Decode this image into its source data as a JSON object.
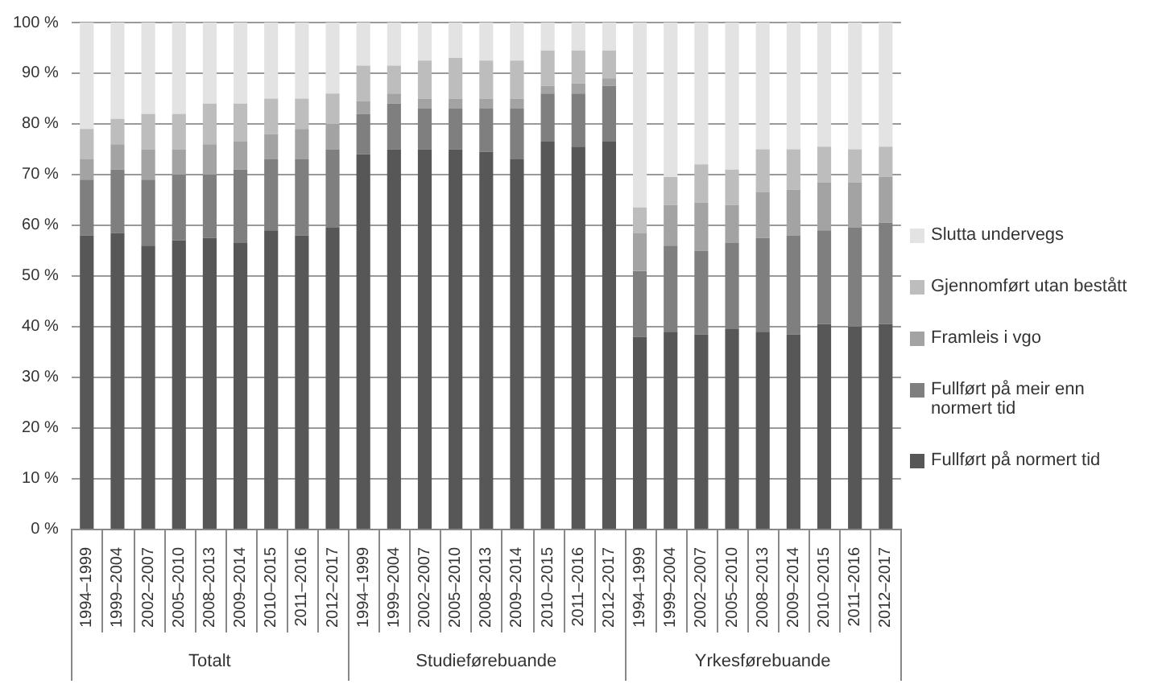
{
  "chart_data": {
    "type": "bar",
    "stacked": true,
    "categories": [
      "1994–1999",
      "1999–2004",
      "2002–2007",
      "2005–2010",
      "2008–2013",
      "2009–2014",
      "2010–2015",
      "2011–2016",
      "2012–2017",
      "1994–1999",
      "1999–2004",
      "2002–2007",
      "2005–2010",
      "2008–2013",
      "2009–2014",
      "2010–2015",
      "2011–2016",
      "2012–2017",
      "1994–1999",
      "1999–2004",
      "2002–2007",
      "2005–2010",
      "2008–2013",
      "2009–2014",
      "2010–2015",
      "2011–2016",
      "2012–2017"
    ],
    "series": [
      {
        "name": "Fullført på normert tid",
        "color": "#575757",
        "values": [
          58,
          58.5,
          56,
          57,
          57.5,
          56.5,
          59,
          58,
          59.5,
          74,
          75,
          75,
          75,
          74.5,
          73,
          76.5,
          75.5,
          76.5,
          38,
          39,
          38.5,
          39.5,
          39,
          38.5,
          40.5,
          40,
          40.5
        ]
      },
      {
        "name": "Fullført på meir enn normert tid",
        "color": "#7f7f7f",
        "values": [
          11,
          12.5,
          13,
          13,
          12.5,
          14.5,
          14,
          15,
          15.5,
          8,
          9,
          8,
          8,
          8.5,
          10,
          9.5,
          10.5,
          11,
          13,
          17,
          16.5,
          17,
          18.5,
          19.5,
          18.5,
          19.5,
          20
        ]
      },
      {
        "name": "Framleis i vgo",
        "color": "#a3a3a3",
        "values": [
          4,
          5,
          6,
          5,
          6,
          5.5,
          5,
          6,
          5,
          2.5,
          2,
          2,
          2,
          2,
          2,
          1.5,
          2,
          1.5,
          7.5,
          8,
          9.5,
          7.5,
          9,
          9,
          9.5,
          9,
          9
        ]
      },
      {
        "name": "Gjennomført utan bestått",
        "color": "#bdbdbd",
        "values": [
          6,
          5,
          7,
          7,
          8,
          7.5,
          7,
          6,
          6,
          7,
          5.5,
          7.5,
          8,
          7.5,
          7.5,
          7,
          6.5,
          5.5,
          5,
          5.5,
          7.5,
          7,
          8.5,
          8,
          7,
          6.5,
          6
        ]
      },
      {
        "name": "Slutta undervegs",
        "color": "#e3e3e3",
        "values": [
          21,
          19,
          18,
          18,
          16,
          16,
          15,
          15,
          14,
          8.5,
          8.5,
          7.5,
          7,
          7.5,
          7.5,
          5.5,
          5.5,
          5.5,
          36.5,
          30.5,
          28,
          29,
          25,
          25,
          24.5,
          25,
          24.5
        ]
      }
    ],
    "ylim": [
      0,
      100
    ],
    "yticks": [
      {
        "value": 0,
        "label": "0 %"
      },
      {
        "value": 10,
        "label": "10 %"
      },
      {
        "value": 20,
        "label": "20 %"
      },
      {
        "value": 30,
        "label": "30 %"
      },
      {
        "value": 40,
        "label": "40 %"
      },
      {
        "value": 50,
        "label": "50 %"
      },
      {
        "value": 60,
        "label": "60 %"
      },
      {
        "value": 70,
        "label": "70 %"
      },
      {
        "value": 80,
        "label": "80 %"
      },
      {
        "value": 90,
        "label": "90 %"
      },
      {
        "value": 100,
        "label": "100 %"
      }
    ],
    "grid": "y",
    "legend": "right",
    "annotations": [
      "Totalt",
      "Studieførebuande",
      "Yrkesførebuande"
    ]
  }
}
